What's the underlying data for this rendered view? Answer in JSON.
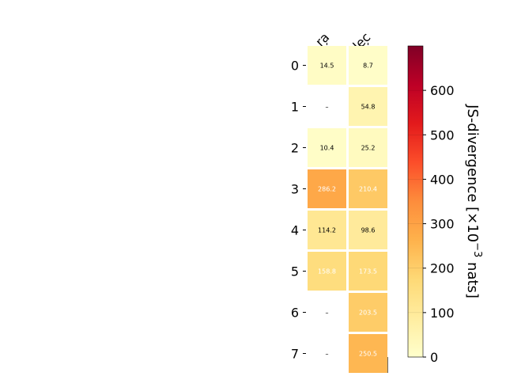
{
  "chart_data": {
    "type": "heatmap",
    "columns": [
      "ra",
      "dec"
    ],
    "rows": [
      "0",
      "1",
      "2",
      "3",
      "4",
      "5",
      "6",
      "7"
    ],
    "values": [
      [
        14.5,
        8.7
      ],
      [
        null,
        54.8
      ],
      [
        10.4,
        25.2
      ],
      [
        286.2,
        210.4
      ],
      [
        114.2,
        98.6
      ],
      [
        158.8,
        173.5
      ],
      [
        null,
        203.5
      ],
      [
        null,
        250.5
      ]
    ],
    "cell_labels": [
      [
        "14.5",
        "8.7"
      ],
      [
        "–",
        "54.8"
      ],
      [
        "10.4",
        "25.2"
      ],
      [
        "286.2",
        "210.4"
      ],
      [
        "114.2",
        "98.6"
      ],
      [
        "158.8",
        "173.5"
      ],
      [
        "–",
        "203.5"
      ],
      [
        "–",
        "250.5"
      ]
    ],
    "colorbar": {
      "label_main": "JS-divergence [×10",
      "label_exp": "−3",
      "label_tail": " nats]",
      "range": [
        0,
        700
      ],
      "ticks": [
        0,
        100,
        200,
        300,
        400,
        500,
        600
      ],
      "colormap": "YlOrRd"
    }
  }
}
